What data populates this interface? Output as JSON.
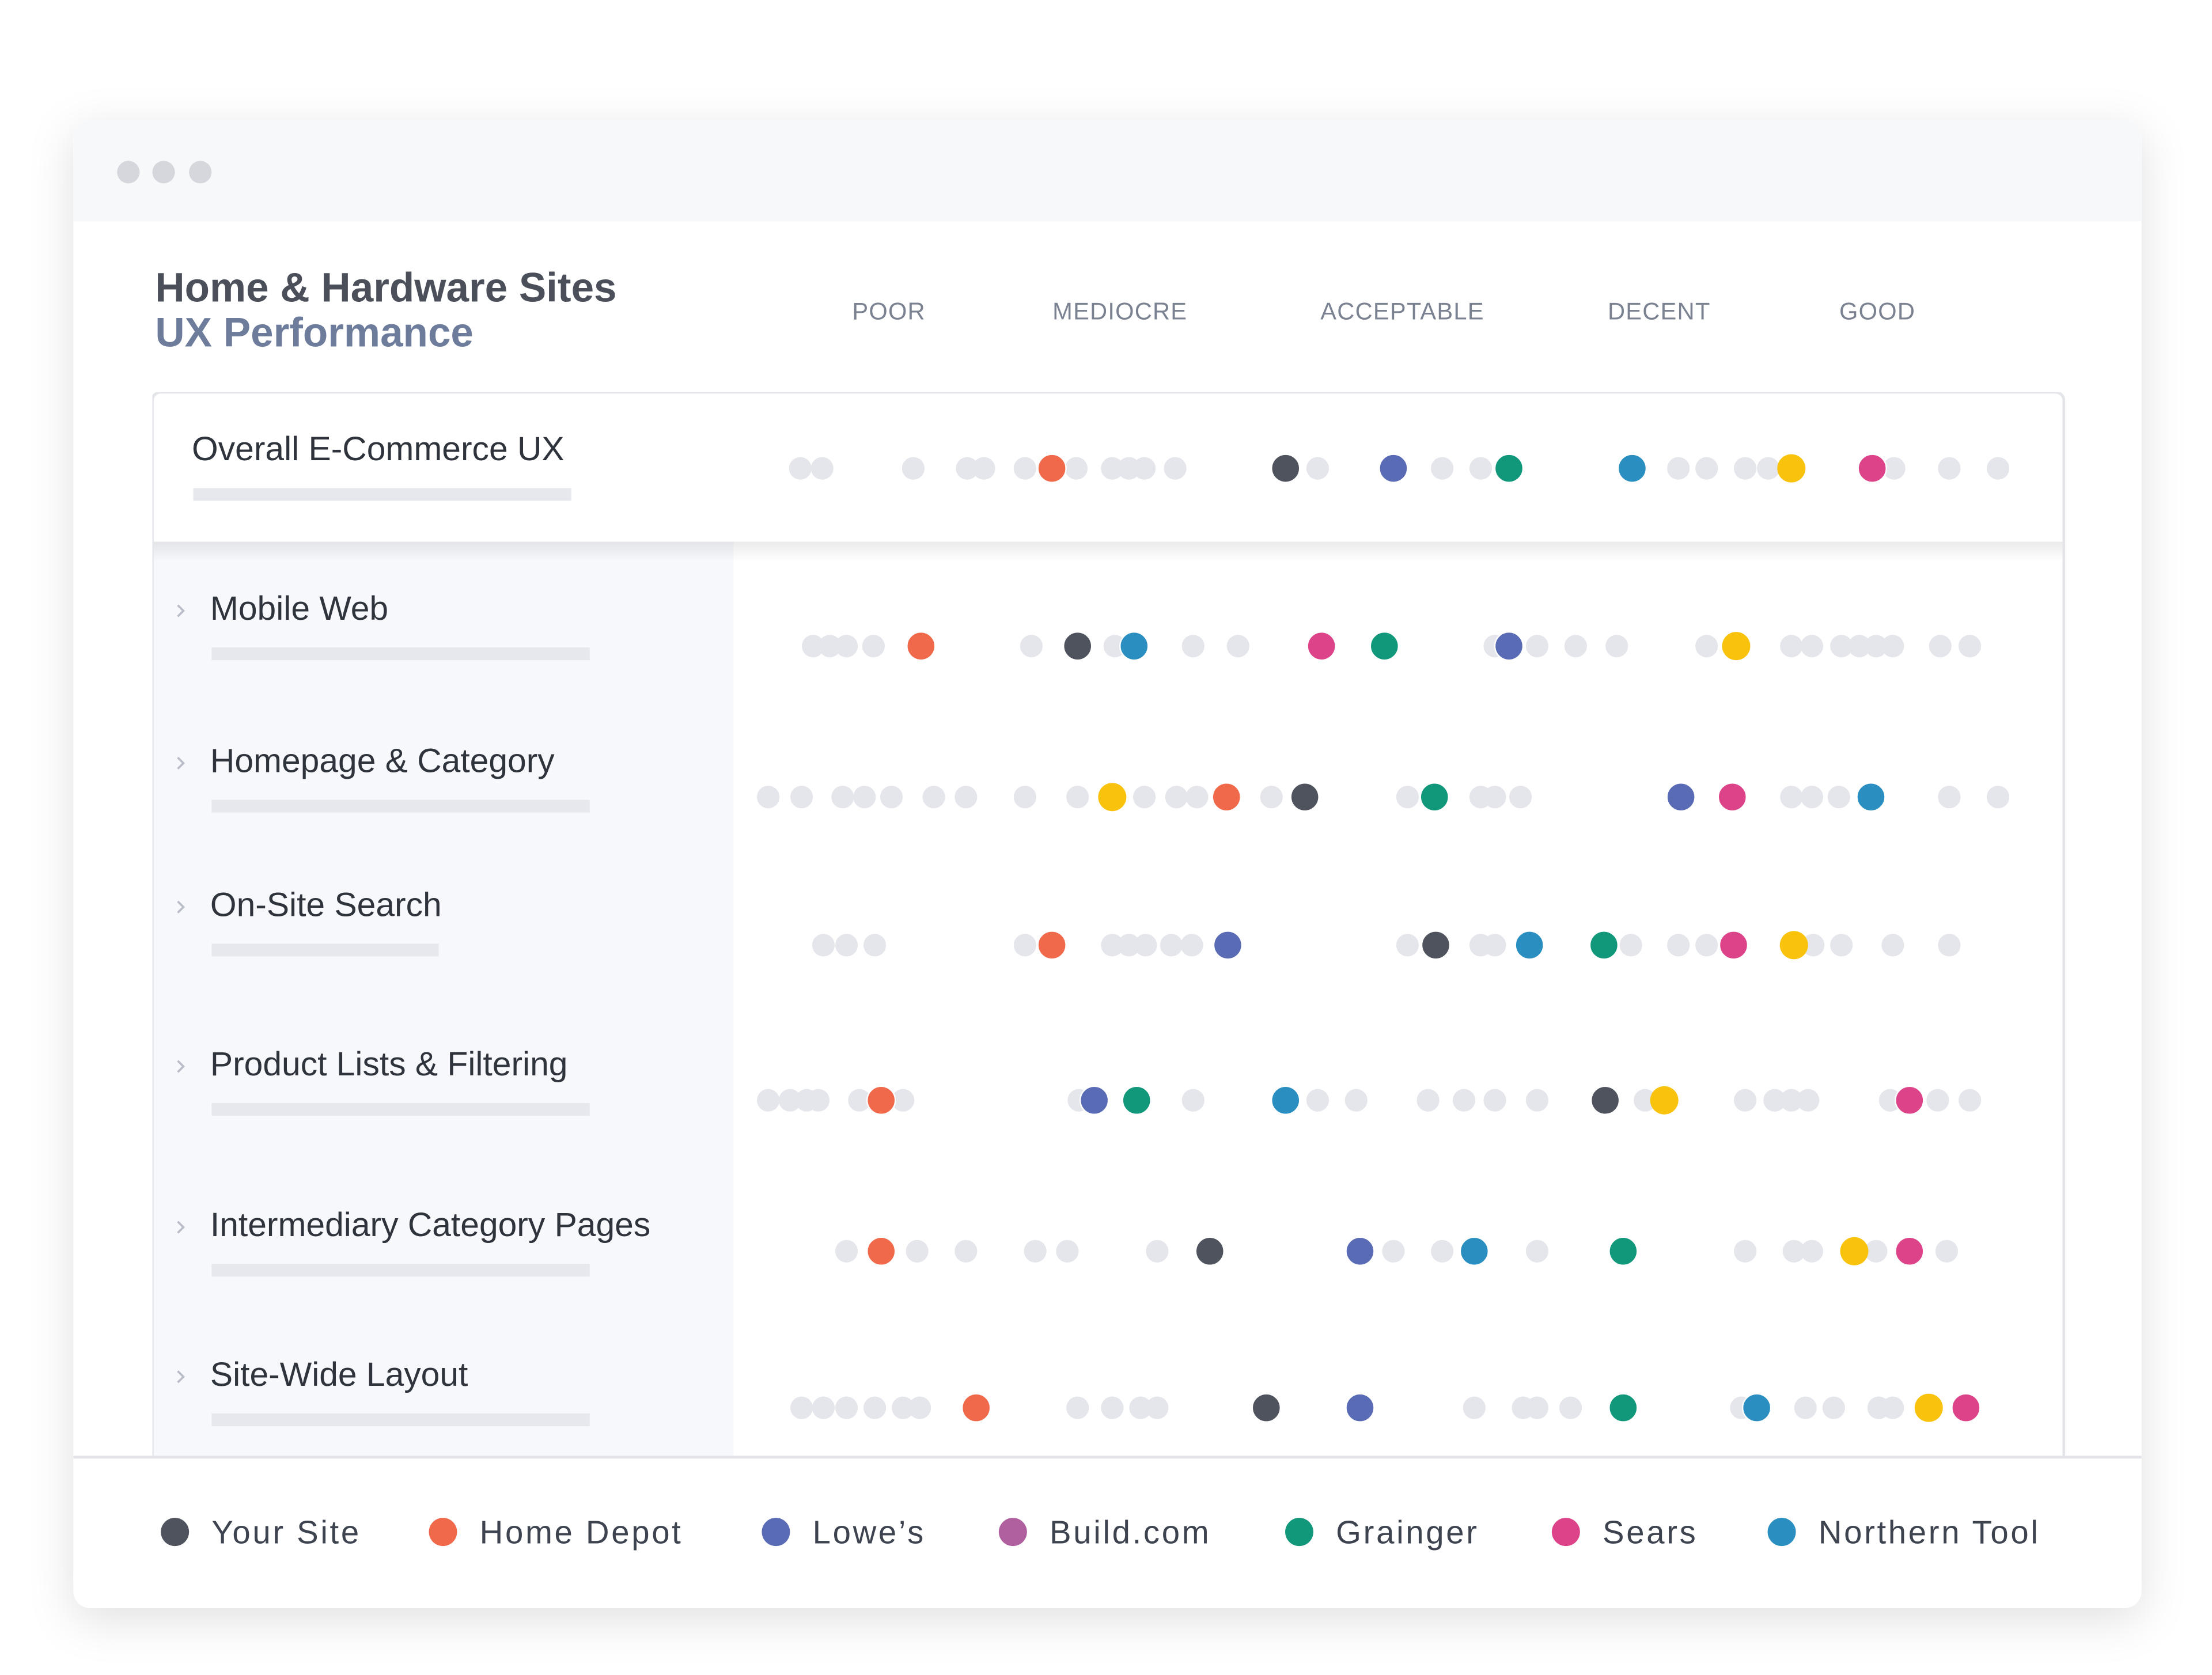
{
  "chart_data": {
    "type": "dot",
    "title": "Home & Hardware Sites",
    "subtitle": "UX Performance",
    "categories": [
      "Overall E-Commerce UX",
      "Mobile Web",
      "Homepage & Category",
      "On-Site Search",
      "Product Lists & Filtering",
      "Intermediary Category Pages",
      "Site-Wide Layout"
    ],
    "xlim": [
      0,
      100
    ],
    "xticks": [
      {
        "value": 11,
        "label": "POOR"
      },
      {
        "value": 29,
        "label": "MEDIOCRE"
      },
      {
        "value": 51,
        "label": "ACCEPTABLE"
      },
      {
        "value": 71,
        "label": "DECENT"
      },
      {
        "value": 88,
        "label": "GOOD"
      }
    ],
    "series": [
      {
        "name": "Your Site",
        "color": "#4f535e",
        "values": [
          41.9,
          25.7,
          43.4,
          53.6,
          66.8,
          36.0,
          40.4
        ]
      },
      {
        "name": "Home Depot",
        "color": "#f0694a",
        "values": [
          23.7,
          13.5,
          37.3,
          23.7,
          10.4,
          10.4,
          17.8
        ]
      },
      {
        "name": "Lowe’s",
        "color": "#5a6bb5",
        "values": [
          50.3,
          59.3,
          72.7,
          37.4,
          27.0,
          47.7,
          47.7
        ]
      },
      {
        "name": "Build.com",
        "color": "#b0609f",
        "values": [
          null,
          null,
          null,
          null,
          null,
          null,
          null
        ]
      },
      {
        "name": "Grainger",
        "color": "#11977a",
        "values": [
          59.3,
          49.6,
          53.5,
          66.7,
          30.3,
          68.2,
          68.2
        ]
      },
      {
        "name": "Sears",
        "color": "#dc4389",
        "values": [
          87.6,
          44.7,
          76.7,
          76.8,
          90.5,
          90.5,
          94.9
        ]
      },
      {
        "name": "Northern Tool",
        "color": "#2a8fc0",
        "values": [
          68.9,
          30.1,
          87.5,
          60.9,
          41.9,
          56.6,
          78.6
        ]
      }
    ],
    "unlabeled_series": {
      "color": "#f9c20c",
      "values": [
        81.3,
        77.0,
        28.4,
        81.5,
        71.4,
        86.2,
        92.0
      ]
    },
    "other_color": "#e4e6ec",
    "other_values": [
      [
        4.1,
        5.8,
        12.9,
        17.1,
        18.4,
        21.6,
        25.6,
        28.4,
        29.7,
        30.9,
        33.3,
        44.4,
        54.1,
        57.1,
        72.5,
        74.7,
        77.7,
        79.5,
        89.3,
        93.6,
        97.4
      ],
      [
        5.1,
        6.4,
        7.7,
        9.8,
        22.1,
        28.6,
        34.7,
        38.2,
        58.2,
        61.5,
        64.5,
        67.7,
        74.7,
        81.3,
        82.9,
        85.2,
        86.6,
        87.9,
        89.2,
        92.9,
        95.2
      ],
      [
        1.6,
        4.2,
        7.4,
        9.1,
        11.2,
        14.5,
        17.0,
        21.6,
        25.7,
        30.9,
        33.4,
        35.0,
        40.8,
        51.4,
        57.1,
        58.2,
        60.2,
        81.3,
        82.9,
        85.0,
        93.6,
        97.4
      ],
      [
        5.9,
        7.7,
        9.9,
        21.6,
        28.4,
        29.7,
        31.0,
        33.0,
        34.6,
        51.4,
        57.1,
        58.2,
        68.8,
        72.5,
        74.7,
        83.0,
        85.2,
        89.2,
        93.6
      ],
      [
        1.6,
        3.3,
        4.6,
        5.5,
        8.7,
        12.1,
        25.8,
        34.7,
        44.4,
        47.4,
        53.0,
        55.8,
        58.2,
        61.5,
        69.9,
        77.7,
        80.0,
        81.3,
        82.6,
        89.0,
        92.7,
        95.2
      ],
      [
        7.7,
        13.2,
        17.0,
        22.4,
        24.9,
        31.9,
        50.3,
        54.1,
        61.5,
        77.7,
        81.5,
        82.9,
        87.9,
        93.4
      ],
      [
        4.2,
        5.9,
        7.7,
        9.9,
        12.1,
        13.4,
        25.7,
        28.4,
        30.6,
        31.9,
        56.6,
        60.4,
        61.5,
        64.1,
        77.4,
        82.4,
        84.6,
        88.1,
        89.2
      ]
    ]
  }
}
